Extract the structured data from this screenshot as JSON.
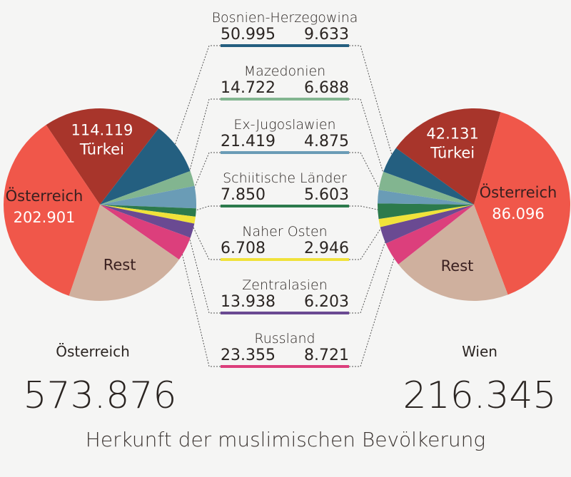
{
  "chart_data": {
    "type": "pie",
    "title": "Herkunft der muslimischen Bevölkerung",
    "pies": [
      {
        "name": "Österreich",
        "total_label": "Österreich",
        "total_value": "573.876",
        "total": 573876,
        "slices": [
          {
            "key": "tuerkei",
            "label": "Türkei",
            "value": 114119,
            "value_label": "114.119"
          },
          {
            "key": "oesterreich",
            "label": "Österreich",
            "value": 202901,
            "value_label": "202.901"
          },
          {
            "key": "rest",
            "label": "Rest",
            "value": 117869
          },
          {
            "key": "russland",
            "label": "Russland",
            "value": 23355
          },
          {
            "key": "zentralasien",
            "label": "Zentralasien",
            "value": 13938
          },
          {
            "key": "naher_osten",
            "label": "Naher Osten",
            "value": 6708
          },
          {
            "key": "schiitische",
            "label": "Schiitische Länder",
            "value": 7850
          },
          {
            "key": "ex_jugoslawien",
            "label": "Ex-Jugoslawien",
            "value": 21419
          },
          {
            "key": "mazedonien",
            "label": "Mazedonien",
            "value": 14722
          },
          {
            "key": "bosnien",
            "label": "Bosnien-Herzegowina",
            "value": 50995
          }
        ]
      },
      {
        "name": "Wien",
        "total_label": "Wien",
        "total_value": "216.345",
        "total": 216345,
        "slices": [
          {
            "key": "tuerkei",
            "label": "Türkei",
            "value": 42131,
            "value_label": "42.131"
          },
          {
            "key": "oesterreich",
            "label": "Österreich",
            "value": 86096,
            "value_label": "86.096"
          },
          {
            "key": "rest",
            "label": "Rest",
            "value": 43449
          },
          {
            "key": "russland",
            "label": "Russland",
            "value": 8721
          },
          {
            "key": "zentralasien",
            "label": "Zentralasien",
            "value": 6203
          },
          {
            "key": "naher_osten",
            "label": "Naher Osten",
            "value": 2946
          },
          {
            "key": "schiitische",
            "label": "Schiitische Länder",
            "value": 5603
          },
          {
            "key": "ex_jugoslawien",
            "label": "Ex-Jugoslawien",
            "value": 4875
          },
          {
            "key": "mazedonien",
            "label": "Mazedonien",
            "value": 6688
          },
          {
            "key": "bosnien",
            "label": "Bosnien-Herzegowina",
            "value": 9633
          }
        ]
      }
    ],
    "colors": {
      "tuerkei": "#a8352b",
      "oesterreich": "#f0574a",
      "rest": "#cfb09e",
      "russland": "#dc3f7c",
      "zentralasien": "#6a4a92",
      "naher_osten": "#f0e23a",
      "schiitische": "#2c7a4c",
      "ex_jugoslawien": "#6a9cb6",
      "mazedonien": "#82b590",
      "bosnien": "#245f80"
    },
    "legend": [
      {
        "key": "bosnien",
        "label": "Bosnien-Herzegowina",
        "oesterreich": "50.995",
        "wien": "9.633"
      },
      {
        "key": "mazedonien",
        "label": "Mazedonien",
        "oesterreich": "14.722",
        "wien": "6.688"
      },
      {
        "key": "ex_jugoslawien",
        "label": "Ex-Jugoslawien",
        "oesterreich": "21.419",
        "wien": "4.875"
      },
      {
        "key": "schiitische",
        "label": "Schiitische Länder",
        "oesterreich": "7.850",
        "wien": "5.603"
      },
      {
        "key": "naher_osten",
        "label": "Naher Osten",
        "oesterreich": "6.708",
        "wien": "2.946"
      },
      {
        "key": "zentralasien",
        "label": "Zentralasien",
        "oesterreich": "13.938",
        "wien": "6.203"
      },
      {
        "key": "russland",
        "label": "Russland",
        "oesterreich": "23.355",
        "wien": "8.721"
      }
    ],
    "label_colors": {
      "light": "#ffffff",
      "dark": "#3a2020"
    }
  }
}
